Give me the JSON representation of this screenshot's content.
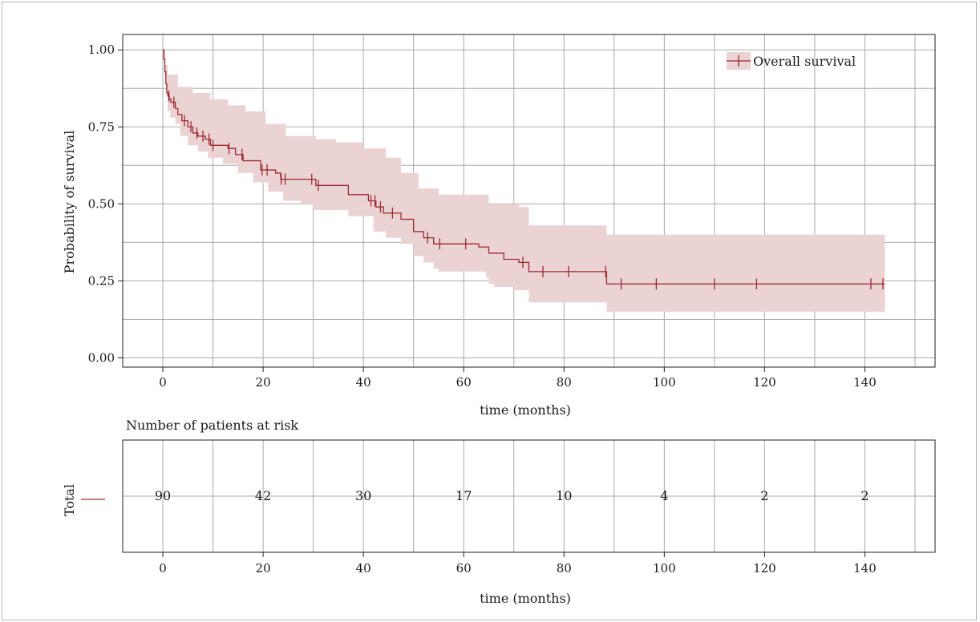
{
  "chart_data": [
    {
      "type": "line",
      "subtype": "kaplan-meier",
      "xlabel": "time (months)",
      "ylabel": "Probability of survival",
      "xlim": [
        -8,
        154
      ],
      "ylim": [
        -0.03,
        1.05
      ],
      "xticks": [
        0,
        20,
        40,
        60,
        80,
        100,
        120,
        140
      ],
      "yticks": [
        0.0,
        0.25,
        0.5,
        0.75,
        1.0
      ],
      "ytick_labels": [
        "0.00",
        "0.25",
        "0.50",
        "0.75",
        "1.00"
      ],
      "grid": true,
      "legend_position": "top-right",
      "colors": {
        "line": "#9b2a33",
        "band": "#ebd3d3",
        "grid": "#a9a9a9"
      },
      "series": [
        {
          "name": "Overall survival",
          "survival_steps": [
            [
              0,
              1.0
            ],
            [
              0.2,
              0.97
            ],
            [
              0.4,
              0.93
            ],
            [
              0.6,
              0.89
            ],
            [
              0.8,
              0.86
            ],
            [
              1.0,
              0.85
            ],
            [
              1.3,
              0.84
            ],
            [
              1.6,
              0.83
            ],
            [
              2.5,
              0.81
            ],
            [
              3.0,
              0.79
            ],
            [
              3.8,
              0.77
            ],
            [
              5.0,
              0.75
            ],
            [
              6.0,
              0.73
            ],
            [
              7.0,
              0.72
            ],
            [
              8.5,
              0.71
            ],
            [
              9.5,
              0.69
            ],
            [
              11.0,
              0.69
            ],
            [
              13.0,
              0.68
            ],
            [
              14.5,
              0.66
            ],
            [
              16.0,
              0.64
            ],
            [
              19.5,
              0.61
            ],
            [
              22.5,
              0.6
            ],
            [
              23.5,
              0.58
            ],
            [
              26.0,
              0.58
            ],
            [
              30.5,
              0.56
            ],
            [
              37.0,
              0.53
            ],
            [
              41.0,
              0.51
            ],
            [
              42.5,
              0.49
            ],
            [
              44.0,
              0.47
            ],
            [
              47.5,
              0.45
            ],
            [
              50.0,
              0.41
            ],
            [
              52.0,
              0.39
            ],
            [
              54.0,
              0.37
            ],
            [
              63.0,
              0.36
            ],
            [
              65.0,
              0.34
            ],
            [
              68.0,
              0.32
            ],
            [
              71.0,
              0.31
            ],
            [
              73.0,
              0.28
            ],
            [
              88.5,
              0.24
            ]
          ],
          "x_end": 144,
          "lower_ci_steps": [
            [
              0,
              1.0
            ],
            [
              0.3,
              0.92
            ],
            [
              0.6,
              0.86
            ],
            [
              1.0,
              0.8
            ],
            [
              1.5,
              0.78
            ],
            [
              2.5,
              0.76
            ],
            [
              3.5,
              0.72
            ],
            [
              5.0,
              0.69
            ],
            [
              7.0,
              0.67
            ],
            [
              9.0,
              0.65
            ],
            [
              12.0,
              0.63
            ],
            [
              15.0,
              0.6
            ],
            [
              18.0,
              0.57
            ],
            [
              21.0,
              0.54
            ],
            [
              24.0,
              0.51
            ],
            [
              27.5,
              0.5
            ],
            [
              30.0,
              0.48
            ],
            [
              37.0,
              0.46
            ],
            [
              42.0,
              0.41
            ],
            [
              44.5,
              0.39
            ],
            [
              47.5,
              0.37
            ],
            [
              50.0,
              0.33
            ],
            [
              52.0,
              0.31
            ],
            [
              54.0,
              0.29
            ],
            [
              55.0,
              0.28
            ],
            [
              64.5,
              0.26
            ],
            [
              65.0,
              0.24
            ],
            [
              66.0,
              0.23
            ],
            [
              70.0,
              0.22
            ],
            [
              73.0,
              0.18
            ],
            [
              88.5,
              0.15
            ]
          ],
          "upper_ci_steps": [
            [
              0,
              1.0
            ],
            [
              0.5,
              0.95
            ],
            [
              1.0,
              0.92
            ],
            [
              3.0,
              0.88
            ],
            [
              6.0,
              0.86
            ],
            [
              9.5,
              0.84
            ],
            [
              13.0,
              0.82
            ],
            [
              16.5,
              0.8
            ],
            [
              20.5,
              0.76
            ],
            [
              24.5,
              0.72
            ],
            [
              30.5,
              0.71
            ],
            [
              34.5,
              0.7
            ],
            [
              40.0,
              0.68
            ],
            [
              44.5,
              0.65
            ],
            [
              47.5,
              0.6
            ],
            [
              51.0,
              0.55
            ],
            [
              55.0,
              0.53
            ],
            [
              65.0,
              0.5
            ],
            [
              71.0,
              0.49
            ],
            [
              73.0,
              0.43
            ],
            [
              88.5,
              0.4
            ]
          ],
          "censor_times": [
            1.2,
            2.2,
            4.3,
            5.6,
            6.8,
            8.0,
            9.2,
            10.0,
            13.2,
            15.8,
            19.8,
            20.8,
            23.6,
            24.4,
            29.7,
            31.0,
            41.5,
            42.3,
            43.4,
            45.8,
            52.8,
            55.2,
            60.4,
            71.8,
            75.8,
            80.9,
            88.3,
            91.4,
            98.4,
            110.0,
            118.4,
            141.2,
            143.6
          ]
        }
      ]
    },
    {
      "type": "table",
      "title": "Number of patients at risk",
      "xlabel": "time (months)",
      "xlim": [
        -8,
        154
      ],
      "xticks": [
        0,
        20,
        40,
        60,
        80,
        100,
        120,
        140
      ],
      "rows": [
        {
          "label": "Total",
          "color": "#9b2a33",
          "values": [
            90,
            42,
            30,
            17,
            10,
            4,
            2,
            2
          ]
        }
      ]
    }
  ],
  "labels": {
    "ylabel": "Probability of survival",
    "xlabel_top": "time (months)",
    "xlabel_bottom": "time (months)",
    "risk_title": "Number of patients at risk",
    "risk_row": "Total",
    "legend": "Overall survival"
  }
}
